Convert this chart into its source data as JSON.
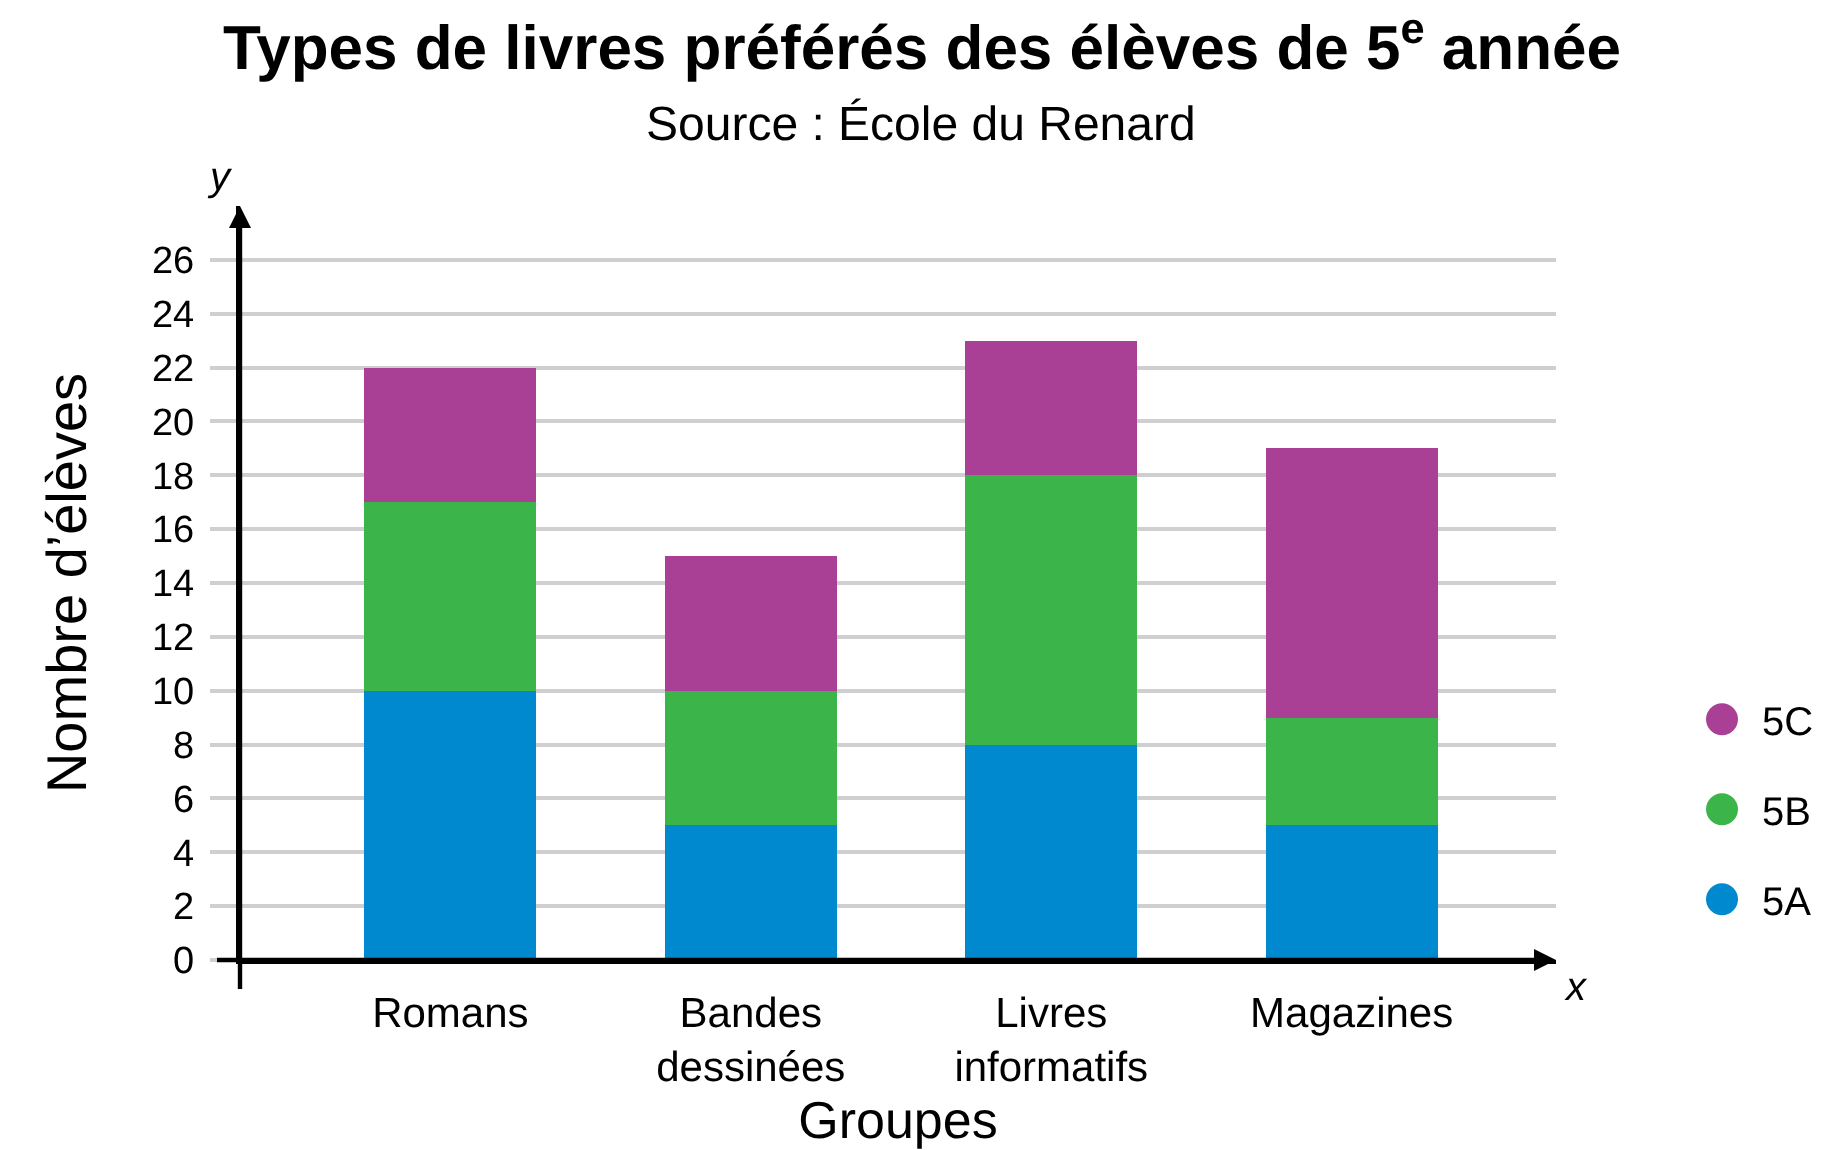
{
  "chart_data": {
    "type": "bar",
    "title": "Types de livres préférés des élèves de 5$^{e}$ année",
    "subtitle": "Source : École du Renard",
    "xlabel": "Groupes",
    "ylabel": "Nombre d’élèves",
    "categories": [
      "Romans",
      "Bandes dessinées",
      "Livres informatifs",
      "Magazines"
    ],
    "series": [
      {
        "name": "5A",
        "color": "#0089cf",
        "values": [
          10,
          5,
          8,
          5
        ]
      },
      {
        "name": "5B",
        "color": "#3bb54a",
        "values": [
          7,
          5,
          10,
          4
        ]
      },
      {
        "name": "5C",
        "color": "#a94096",
        "values": [
          5,
          5,
          5,
          10
        ]
      }
    ],
    "stacked": true,
    "ylim": [
      0,
      28
    ],
    "yticks": [
      0,
      2,
      4,
      6,
      8,
      10,
      12,
      14,
      16,
      18,
      20,
      22,
      24,
      26
    ],
    "grid": "y",
    "legend": "right",
    "annotations": [
      "y",
      "x"
    ]
  }
}
